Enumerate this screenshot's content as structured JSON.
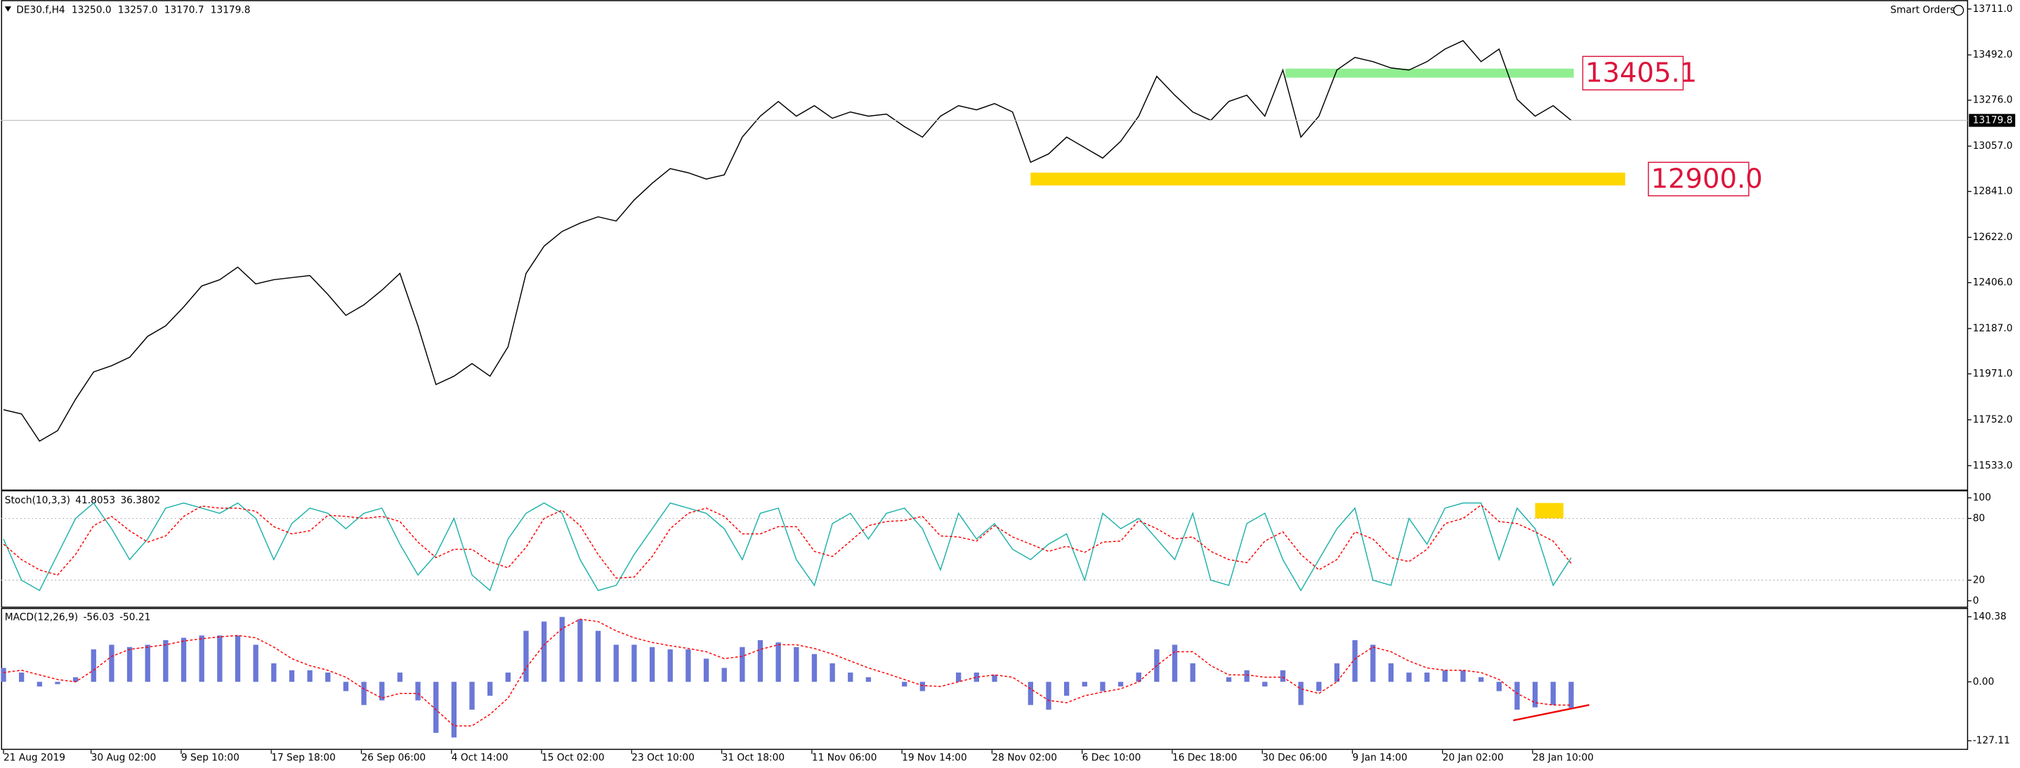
{
  "header": {
    "smart_orders": "Smart Orders"
  },
  "chart_data": [
    {
      "type": "line",
      "title": "DE30.f,H4",
      "ohlc": [
        {
          "value": 13250.0,
          "label": "13250.0"
        },
        {
          "value": 13257.0,
          "label": "13257.0"
        },
        {
          "value": 13170.7,
          "label": "13170.7"
        },
        {
          "value": 13179.8,
          "label": "13179.8"
        }
      ],
      "ylim": [
        11416.5,
        13753.9
      ],
      "yticks": [
        {
          "value": 13711,
          "label": "13711.0"
        },
        {
          "value": 13492,
          "label": "13492.0"
        },
        {
          "value": 13276,
          "label": "13276.0"
        },
        {
          "value": 13057,
          "label": "13057.0"
        },
        {
          "value": 12841,
          "label": "12841.0"
        },
        {
          "value": 12622,
          "label": "12622.0"
        },
        {
          "value": 12406,
          "label": "12406.0"
        },
        {
          "value": 12187,
          "label": "12187.0"
        },
        {
          "value": 11971,
          "label": "11971.0"
        },
        {
          "value": 11752,
          "label": "11752.0"
        },
        {
          "value": 11533,
          "label": "11533.0"
        }
      ],
      "series": [
        {
          "color": "#000000",
          "values": [
            11800,
            11780,
            11650,
            11700,
            11850,
            11980,
            12010,
            12050,
            12150,
            12200,
            12290,
            12390,
            12420,
            12480,
            12400,
            12420,
            12430,
            12440,
            12350,
            12250,
            12300,
            12370,
            12450,
            12200,
            11920,
            11960,
            12020,
            11960,
            12100,
            12450,
            12580,
            12650,
            12690,
            12720,
            12700,
            12800,
            12880,
            12950,
            12930,
            12900,
            12920,
            13100,
            13200,
            13270,
            13200,
            13250,
            13190,
            13220,
            13200,
            13210,
            13150,
            13100,
            13200,
            13250,
            13230,
            13260,
            13220,
            12980,
            13020,
            13100,
            13050,
            13000,
            13080,
            13200,
            13390,
            13300,
            13220,
            13180,
            13270,
            13300,
            13200,
            13420,
            13100,
            13200,
            13420,
            13480,
            13460,
            13430,
            13420,
            13460,
            13520,
            13560,
            13460,
            13520,
            13280,
            13200,
            13250,
            13179.8
          ]
        }
      ],
      "levels": [
        {
          "value": 13405.1,
          "label": "13405.1",
          "color": "#90ee90"
        },
        {
          "value": 12900.0,
          "label": "12900.0",
          "color": "#ffd700"
        }
      ]
    },
    {
      "type": "line",
      "title": "Stoch(10,3,3)",
      "ylim": [
        -6.25,
        107.5
      ],
      "yticks": [
        100,
        80,
        20,
        0
      ],
      "grid_ticks": [
        80,
        20
      ],
      "series": [
        {
          "color": "#20b2aa",
          "values": [
            60,
            20,
            10,
            45,
            80,
            95,
            70,
            40,
            60,
            90,
            95,
            90,
            85,
            95,
            80,
            40,
            75,
            90,
            85,
            70,
            85,
            90,
            55,
            25,
            45,
            80,
            25,
            10,
            60,
            85,
            95,
            85,
            40,
            10,
            15,
            45,
            70,
            95,
            90,
            85,
            70,
            40,
            85,
            90,
            40,
            15,
            75,
            85,
            60,
            85,
            90,
            70,
            30,
            85,
            60,
            75,
            50,
            40,
            55,
            65,
            20,
            85,
            70,
            80,
            60,
            40,
            85,
            20,
            15,
            75,
            85,
            40,
            10,
            40,
            70,
            90,
            20,
            15,
            80,
            55,
            90,
            95,
            95,
            40,
            90,
            70,
            15,
            41.8053
          ]
        },
        {
          "color": "#ff0000",
          "dash": true,
          "values": [
            55,
            40,
            30,
            25,
            45,
            73,
            82,
            68,
            57,
            63,
            82,
            92,
            90,
            90,
            87,
            72,
            65,
            68,
            83,
            82,
            80,
            82,
            77,
            57,
            42,
            50,
            50,
            38,
            32,
            52,
            80,
            88,
            73,
            45,
            22,
            23,
            43,
            70,
            85,
            90,
            82,
            65,
            65,
            72,
            72,
            48,
            43,
            58,
            73,
            77,
            78,
            82,
            63,
            62,
            58,
            73,
            62,
            55,
            48,
            53,
            47,
            57,
            58,
            78,
            70,
            60,
            62,
            48,
            40,
            37,
            58,
            67,
            45,
            30,
            40,
            67,
            60,
            42,
            38,
            50,
            75,
            80,
            93,
            77,
            75,
            67,
            58,
            36.3802
          ]
        }
      ]
    },
    {
      "type": "bar",
      "title": "MACD(12,26,9)",
      "ylim": [
        -147,
        161
      ],
      "yticks": [
        140.38,
        {
          "value": 0,
          "label": "0.00"
        },
        -127.11
      ],
      "xlim": [
        0,
        109
      ],
      "xticks": [
        {
          "value": 0,
          "label": "21 Aug 2019"
        },
        {
          "value": 4.86,
          "label": "30 Aug 02:00"
        },
        {
          "value": 9.86,
          "label": "9 Sep 10:00"
        },
        {
          "value": 14.86,
          "label": "17 Sep 18:00"
        },
        {
          "value": 19.86,
          "label": "26 Sep 06:00"
        },
        {
          "value": 24.86,
          "label": "4 Oct 14:00"
        },
        {
          "value": 29.86,
          "label": "15 Oct 02:00"
        },
        {
          "value": 34.86,
          "label": "23 Oct 10:00"
        },
        {
          "value": 39.86,
          "label": "31 Oct 18:00"
        },
        {
          "value": 44.86,
          "label": "11 Nov 06:00"
        },
        {
          "value": 49.86,
          "label": "19 Nov 14:00"
        },
        {
          "value": 54.86,
          "label": "28 Nov 02:00"
        },
        {
          "value": 59.86,
          "label": "6 Dec 10:00"
        },
        {
          "value": 64.86,
          "label": "16 Dec 18:00"
        },
        {
          "value": 69.86,
          "label": "30 Dec 06:00"
        },
        {
          "value": 74.86,
          "label": "9 Jan 14:00"
        },
        {
          "value": 79.86,
          "label": "20 Jan 02:00"
        },
        {
          "value": 84.86,
          "label": "28 Jan 10:00"
        }
      ],
      "series": [
        {
          "color": "#6b78d6",
          "values": [
            30,
            20,
            -10,
            -5,
            10,
            70,
            80,
            75,
            80,
            90,
            95,
            100,
            100,
            100,
            80,
            40,
            25,
            25,
            20,
            -20,
            -50,
            -40,
            20,
            -40,
            -110,
            -120,
            -60,
            -30,
            20,
            110,
            130,
            140,
            135,
            110,
            80,
            80,
            75,
            70,
            70,
            50,
            30,
            75,
            90,
            85,
            75,
            60,
            40,
            20,
            10,
            0,
            -10,
            -20,
            0,
            20,
            20,
            15,
            0,
            -50,
            -60,
            -30,
            -10,
            -20,
            -10,
            20,
            70,
            80,
            40,
            0,
            10,
            25,
            -10,
            25,
            -50,
            -20,
            40,
            90,
            80,
            40,
            20,
            20,
            25,
            25,
            10,
            -20,
            -60,
            -55,
            -50,
            -56.03
          ]
        },
        {
          "type": "line",
          "color": "#ff0000",
          "dash": true,
          "values": [
            20,
            25,
            15,
            5,
            0,
            25,
            55,
            70,
            75,
            80,
            88,
            93,
            97,
            100,
            95,
            75,
            50,
            35,
            25,
            10,
            -15,
            -35,
            -25,
            -25,
            -60,
            -95,
            -95,
            -70,
            -35,
            30,
            80,
            115,
            135,
            130,
            110,
            95,
            85,
            78,
            72,
            65,
            50,
            55,
            70,
            80,
            80,
            72,
            60,
            45,
            30,
            18,
            5,
            -8,
            -10,
            0,
            10,
            15,
            10,
            -15,
            -40,
            -45,
            -30,
            -22,
            -15,
            0,
            35,
            65,
            65,
            35,
            15,
            15,
            10,
            10,
            -15,
            -25,
            0,
            50,
            75,
            65,
            45,
            30,
            25,
            25,
            20,
            5,
            -25,
            -45,
            -50,
            -50.21
          ]
        }
      ]
    }
  ]
}
